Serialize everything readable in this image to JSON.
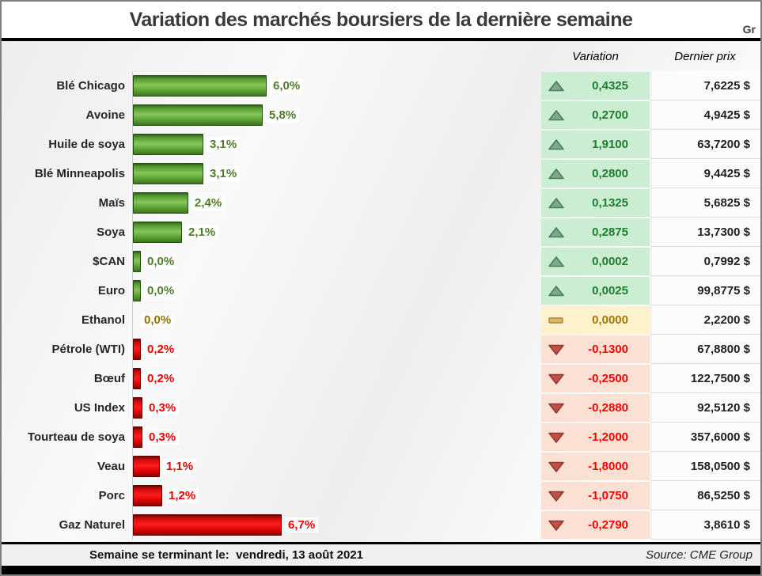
{
  "title": "Variation des marchés boursiers de la dernière semaine",
  "watermark": "Gr",
  "table_header": {
    "variation": "Variation",
    "last_price": "Dernier prix"
  },
  "footer": {
    "week_label": "Semaine se terminant le:",
    "week_date": "vendredi, 13 août 2021",
    "source": "Source: CME Group"
  },
  "colors": {
    "bar_up": "#5ea832",
    "bar_down": "#ee0000",
    "cell_up_bg": "#cbedd2",
    "cell_flat_bg": "#fdf2cc",
    "cell_down_bg": "#fbe1d4",
    "text_up": "#1e7e2e",
    "text_flat": "#a07800",
    "text_down": "#ff0000"
  },
  "rows": [
    {
      "name": "Blé Chicago",
      "pct": 6.0,
      "pct_label": "6,0%",
      "direction": "up",
      "variation": "0,4325",
      "price": "7,6225 $"
    },
    {
      "name": "Avoine",
      "pct": 5.8,
      "pct_label": "5,8%",
      "direction": "up",
      "variation": "0,2700",
      "price": "4,9425 $"
    },
    {
      "name": "Huile de soya",
      "pct": 3.1,
      "pct_label": "3,1%",
      "direction": "up",
      "variation": "1,9100",
      "price": "63,7200 $"
    },
    {
      "name": "Blé Minneapolis",
      "pct": 3.1,
      "pct_label": "3,1%",
      "direction": "up",
      "variation": "0,2800",
      "price": "9,4425 $"
    },
    {
      "name": "Maïs",
      "pct": 2.4,
      "pct_label": "2,4%",
      "direction": "up",
      "variation": "0,1325",
      "price": "5,6825 $"
    },
    {
      "name": "Soya",
      "pct": 2.1,
      "pct_label": "2,1%",
      "direction": "up",
      "variation": "0,2875",
      "price": "13,7300 $"
    },
    {
      "name": "$CAN",
      "pct": 0.0,
      "pct_label": "0,0%",
      "direction": "up",
      "variation": "0,0002",
      "price": "0,7992 $"
    },
    {
      "name": "Euro",
      "pct": 0.0,
      "pct_label": "0,0%",
      "direction": "up",
      "variation": "0,0025",
      "price": "99,8775 $"
    },
    {
      "name": "Ethanol",
      "pct": 0.0,
      "pct_label": "0,0%",
      "direction": "flat",
      "variation": "0,0000",
      "price": "2,2200 $"
    },
    {
      "name": "Pétrole (WTI)",
      "pct": 0.2,
      "pct_label": "0,2%",
      "direction": "down",
      "variation": "-0,1300",
      "price": "67,8800 $"
    },
    {
      "name": "Bœuf",
      "pct": 0.2,
      "pct_label": "0,2%",
      "direction": "down",
      "variation": "-0,2500",
      "price": "122,7500 $"
    },
    {
      "name": "US Index",
      "pct": 0.3,
      "pct_label": "0,3%",
      "direction": "down",
      "variation": "-0,2880",
      "price": "92,5120 $"
    },
    {
      "name": "Tourteau de soya",
      "pct": 0.3,
      "pct_label": "0,3%",
      "direction": "down",
      "variation": "-1,2000",
      "price": "357,6000 $"
    },
    {
      "name": "Veau",
      "pct": 1.1,
      "pct_label": "1,1%",
      "direction": "down",
      "variation": "-1,8000",
      "price": "158,0500 $"
    },
    {
      "name": "Porc",
      "pct": 1.2,
      "pct_label": "1,2%",
      "direction": "down",
      "variation": "-1,0750",
      "price": "86,5250 $"
    },
    {
      "name": "Gaz Naturel",
      "pct": 6.7,
      "pct_label": "6,7%",
      "direction": "down",
      "variation": "-0,2790",
      "price": "3,8610 $"
    }
  ],
  "chart_data": {
    "type": "bar",
    "orientation": "horizontal",
    "title": "Variation des marchés boursiers de la dernière semaine",
    "categories": [
      "Blé Chicago",
      "Avoine",
      "Huile de soya",
      "Blé Minneapolis",
      "Maïs",
      "Soya",
      "$CAN",
      "Euro",
      "Ethanol",
      "Pétrole (WTI)",
      "Bœuf",
      "US Index",
      "Tourteau de soya",
      "Veau",
      "Porc",
      "Gaz Naturel"
    ],
    "values": [
      6.0,
      5.8,
      3.1,
      3.1,
      2.4,
      2.1,
      0.0,
      0.0,
      0.0,
      0.2,
      0.2,
      0.3,
      0.3,
      1.1,
      1.2,
      6.7
    ],
    "value_unit": "percent_absolute_change",
    "directions": [
      "up",
      "up",
      "up",
      "up",
      "up",
      "up",
      "up",
      "up",
      "flat",
      "down",
      "down",
      "down",
      "down",
      "down",
      "down",
      "down"
    ],
    "series": [
      {
        "name": "Variation",
        "values": [
          0.4325,
          0.27,
          1.91,
          0.28,
          0.1325,
          0.2875,
          0.0002,
          0.0025,
          0.0,
          -0.13,
          -0.25,
          -0.288,
          -1.2,
          -1.8,
          -1.075,
          -0.279
        ]
      },
      {
        "name": "Dernier prix ($)",
        "values": [
          7.6225,
          4.9425,
          63.72,
          9.4425,
          5.6825,
          13.73,
          0.7992,
          99.8775,
          2.22,
          67.88,
          122.75,
          92.512,
          357.6,
          158.05,
          86.525,
          3.861
        ]
      }
    ],
    "xlim": [
      0,
      7.5
    ],
    "grid": false,
    "legend": false
  }
}
